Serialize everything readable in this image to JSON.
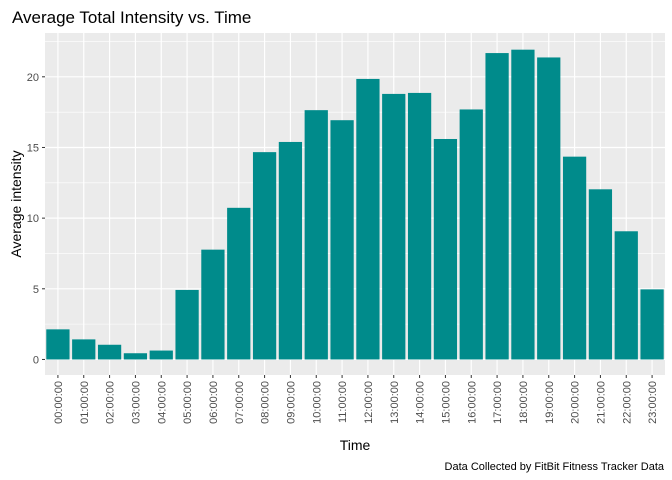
{
  "chart_data": {
    "type": "bar",
    "title": "Average Total Intensity vs. Time",
    "xlabel": "Time",
    "ylabel": "Average intensity",
    "caption": "Data Collected by FitBit Fitness Tracker Data",
    "categories": [
      "00:00:00",
      "01:00:00",
      "02:00:00",
      "03:00:00",
      "04:00:00",
      "05:00:00",
      "06:00:00",
      "07:00:00",
      "08:00:00",
      "09:00:00",
      "10:00:00",
      "11:00:00",
      "12:00:00",
      "13:00:00",
      "14:00:00",
      "15:00:00",
      "16:00:00",
      "17:00:00",
      "18:00:00",
      "19:00:00",
      "20:00:00",
      "21:00:00",
      "22:00:00",
      "23:00:00"
    ],
    "values": [
      2.13,
      1.42,
      1.04,
      0.44,
      0.63,
      4.92,
      7.77,
      10.73,
      14.67,
      15.39,
      17.64,
      16.93,
      19.85,
      18.79,
      18.86,
      15.6,
      17.69,
      21.68,
      21.92,
      21.37,
      14.35,
      12.04,
      9.07,
      4.96
    ],
    "yticks": [
      0,
      5,
      10,
      15,
      20
    ],
    "ylim": [
      -1.1,
      23.1
    ],
    "grid": true,
    "colors": {
      "bar": "#008B8B",
      "panel_background": "#EBEBEB",
      "grid": "#FFFFFF"
    }
  }
}
